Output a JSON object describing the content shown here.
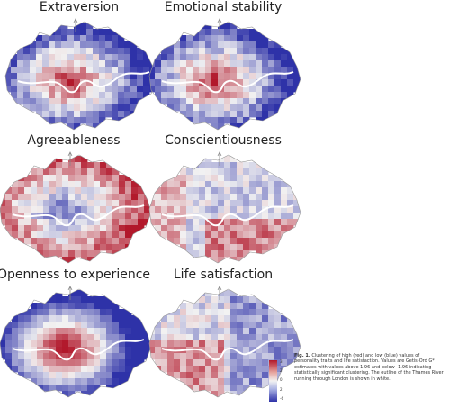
{
  "panels": [
    {
      "title": "Extraversion",
      "pattern": "center-red"
    },
    {
      "title": "Emotional stability",
      "pattern": "center-red"
    },
    {
      "title": "Agreeableness",
      "pattern": "center-blue"
    },
    {
      "title": "Conscientiousness",
      "pattern": "mixed-red"
    },
    {
      "title": "Openness to experience",
      "pattern": "strong-center-red"
    },
    {
      "title": "Life satisfaction",
      "pattern": "mixed"
    }
  ],
  "legend": {
    "ticks": [
      "3",
      "2",
      "0",
      "2",
      "-6"
    ],
    "colors": {
      "high": "#b2182b",
      "mid": "#f2f2f2",
      "low": "#2e32a8",
      "river": "#ffffff"
    }
  },
  "caption": {
    "label": "Fig. 1.",
    "text": "Clustering of high (red) and low (blue) values of personality traits and life satisfaction. Values are Getis-Ord G* estimates with values above 1.96 and below -1.96 indicating statistically significant clustering. The outline of the Thames River running through London is shown in white."
  }
}
